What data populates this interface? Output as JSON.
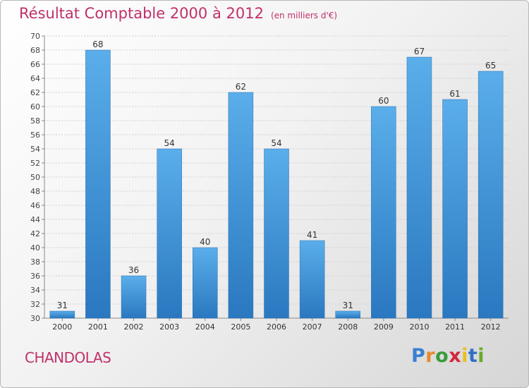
{
  "title": "Résultat Comptable 2000 à 2012",
  "subtitle": "(en milliers d'€)",
  "commune": "CHANDOLAS",
  "logo": {
    "letters": [
      "P",
      "r",
      "o",
      "x",
      "i",
      "t",
      "i"
    ],
    "colors": [
      "#3a7fd0",
      "#e8892b",
      "#3a9a3a",
      "#d4283c",
      "#e8c020",
      "#2f6fc7",
      "#6aa82a"
    ]
  },
  "chart_data": {
    "type": "bar",
    "categories": [
      "2000",
      "2001",
      "2002",
      "2003",
      "2004",
      "2005",
      "2006",
      "2007",
      "2008",
      "2009",
      "2010",
      "2011",
      "2012"
    ],
    "values": [
      31,
      68,
      36,
      54,
      40,
      62,
      54,
      41,
      31,
      60,
      67,
      61,
      65
    ],
    "data_labels": [
      "31",
      "68",
      "36",
      "54",
      "40",
      "62",
      "54",
      "41",
      "31",
      "60",
      "67",
      "61",
      "65"
    ],
    "ylim": [
      30,
      70
    ],
    "yticks": [
      "30",
      "32",
      "34",
      "36",
      "38",
      "40",
      "42",
      "44",
      "46",
      "48",
      "50",
      "52",
      "54",
      "56",
      "58",
      "60",
      "62",
      "64",
      "66",
      "68",
      "70"
    ],
    "grid": true,
    "bar_color": "#4a9be0"
  }
}
